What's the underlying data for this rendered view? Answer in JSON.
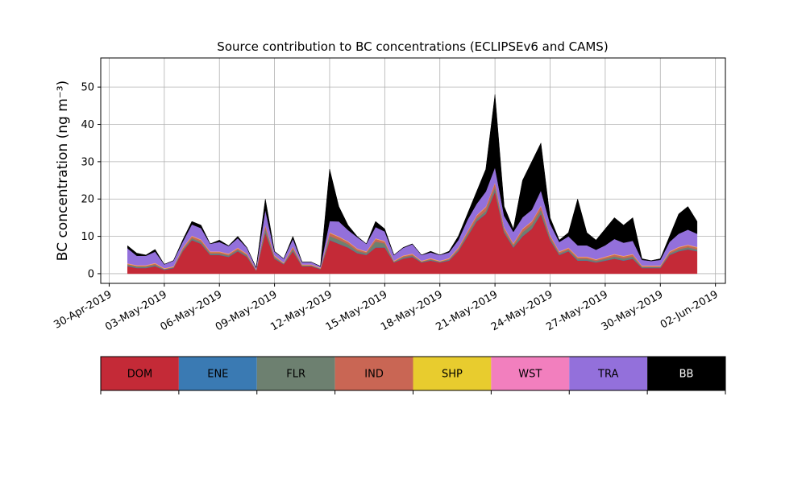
{
  "chart_data": {
    "type": "stacked_area",
    "title": "Source contribution to BC concentrations (ECLIPSEv6 and CAMS)",
    "y_label": "BC concentration (ng m⁻³)",
    "grid": true,
    "xlim": [
      "2019-04-29T13:00",
      "2019-06-02T13:00"
    ],
    "ylim": [
      -2.6,
      57.8
    ],
    "yticks": [
      0,
      10,
      20,
      30,
      40,
      50
    ],
    "xticks": [
      {
        "value": "2019-04-30T00:00",
        "label": "30-Apr-2019"
      },
      {
        "value": "2019-05-03T00:00",
        "label": "03-May-2019"
      },
      {
        "value": "2019-05-06T00:00",
        "label": "06-May-2019"
      },
      {
        "value": "2019-05-09T00:00",
        "label": "09-May-2019"
      },
      {
        "value": "2019-05-12T00:00",
        "label": "12-May-2019"
      },
      {
        "value": "2019-05-15T00:00",
        "label": "15-May-2019"
      },
      {
        "value": "2019-05-18T00:00",
        "label": "18-May-2019"
      },
      {
        "value": "2019-05-21T00:00",
        "label": "21-May-2019"
      },
      {
        "value": "2019-05-24T00:00",
        "label": "24-May-2019"
      },
      {
        "value": "2019-05-27T00:00",
        "label": "27-May-2019"
      },
      {
        "value": "2019-05-30T00:00",
        "label": "30-May-2019"
      },
      {
        "value": "2019-06-02T00:00",
        "label": "02-Jun-2019"
      }
    ],
    "x": [
      "2019-05-01T00:00",
      "2019-05-01T12:00",
      "2019-05-02T00:00",
      "2019-05-02T12:00",
      "2019-05-03T00:00",
      "2019-05-03T12:00",
      "2019-05-04T00:00",
      "2019-05-04T12:00",
      "2019-05-05T00:00",
      "2019-05-05T12:00",
      "2019-05-06T00:00",
      "2019-05-06T12:00",
      "2019-05-07T00:00",
      "2019-05-07T12:00",
      "2019-05-08T00:00",
      "2019-05-08T12:00",
      "2019-05-09T00:00",
      "2019-05-09T12:00",
      "2019-05-10T00:00",
      "2019-05-10T12:00",
      "2019-05-11T00:00",
      "2019-05-11T12:00",
      "2019-05-12T00:00",
      "2019-05-12T12:00",
      "2019-05-13T00:00",
      "2019-05-13T12:00",
      "2019-05-14T00:00",
      "2019-05-14T12:00",
      "2019-05-15T00:00",
      "2019-05-15T12:00",
      "2019-05-16T00:00",
      "2019-05-16T12:00",
      "2019-05-17T00:00",
      "2019-05-17T12:00",
      "2019-05-18T00:00",
      "2019-05-18T12:00",
      "2019-05-19T00:00",
      "2019-05-19T12:00",
      "2019-05-20T00:00",
      "2019-05-20T12:00",
      "2019-05-21T00:00",
      "2019-05-21T12:00",
      "2019-05-22T00:00",
      "2019-05-22T12:00",
      "2019-05-23T00:00",
      "2019-05-23T12:00",
      "2019-05-24T00:00",
      "2019-05-24T12:00",
      "2019-05-25T00:00",
      "2019-05-25T12:00",
      "2019-05-26T00:00",
      "2019-05-26T12:00",
      "2019-05-27T00:00",
      "2019-05-27T12:00",
      "2019-05-28T00:00",
      "2019-05-28T12:00",
      "2019-05-29T00:00",
      "2019-05-29T12:00",
      "2019-05-30T00:00",
      "2019-05-30T12:00",
      "2019-05-31T00:00",
      "2019-05-31T12:00",
      "2019-06-01T00:00"
    ],
    "series": [
      {
        "name": "DOM",
        "color": "#c42a37",
        "values": [
          2,
          1.5,
          1.5,
          2,
          1,
          1.5,
          6,
          9,
          8,
          5,
          5,
          4.5,
          6,
          4.5,
          0.8,
          11,
          4,
          2.5,
          6,
          2,
          2,
          1.2,
          9,
          8,
          7,
          5.5,
          5,
          7,
          7,
          3,
          4,
          4.5,
          3,
          3.5,
          3,
          3.5,
          6,
          10,
          14,
          16,
          22,
          11,
          7,
          10,
          12,
          16,
          9,
          5,
          6,
          3.5,
          3.5,
          3,
          3.5,
          4,
          3.5,
          4,
          1.5,
          1.5,
          1.5,
          5,
          6,
          6.5,
          6
        ]
      },
      {
        "name": "ENE",
        "color": "#3a7ab3",
        "values": [
          0.1,
          0.1,
          0.1,
          0.1,
          0.1,
          0.1,
          0.1,
          0.1,
          0.1,
          0.1,
          0.1,
          0.1,
          0.1,
          0.1,
          0.1,
          0.1,
          0.1,
          0.1,
          0.1,
          0.1,
          0.1,
          0.1,
          0.1,
          0.1,
          0.1,
          0.1,
          0.1,
          0.1,
          0.1,
          0.1,
          0.1,
          0.1,
          0.1,
          0.1,
          0.1,
          0.1,
          0.1,
          0.1,
          0.1,
          0.1,
          0.1,
          0.1,
          0.1,
          0.1,
          0.1,
          0.1,
          0.1,
          0.1,
          0.1,
          0.1,
          0.1,
          0.1,
          0.1,
          0.1,
          0.1,
          0.1,
          0.1,
          0.1,
          0.1,
          0.1,
          0.1,
          0.1,
          0.1
        ]
      },
      {
        "name": "FLR",
        "color": "#6d8070",
        "values": [
          0.3,
          0.3,
          0.3,
          0.3,
          0.1,
          0.1,
          0.3,
          0.4,
          0.4,
          0.3,
          0.3,
          0.3,
          0.3,
          0.3,
          0.05,
          1,
          0.3,
          0.1,
          0.5,
          0.1,
          0.1,
          0.05,
          1,
          1,
          0.8,
          0.5,
          0.4,
          1.5,
          1,
          0.1,
          0.3,
          0.3,
          0.1,
          0.2,
          0.1,
          0.2,
          0.3,
          0.5,
          0.6,
          0.7,
          1,
          0.5,
          0.4,
          1,
          1,
          1,
          0.5,
          0.3,
          0.3,
          0.4,
          0.4,
          0.3,
          0.4,
          0.5,
          0.5,
          0.5,
          0.2,
          0.2,
          0.2,
          0.3,
          0.4,
          0.5,
          0.4
        ]
      },
      {
        "name": "IND",
        "color": "#c96654",
        "values": [
          0.2,
          0.2,
          0.2,
          0.3,
          0.1,
          0.1,
          0.4,
          0.5,
          0.5,
          0.4,
          0.4,
          0.3,
          0.4,
          0.3,
          0.05,
          0.8,
          0.3,
          0.1,
          0.5,
          0.1,
          0.1,
          0.05,
          0.8,
          0.7,
          0.6,
          0.5,
          0.3,
          0.7,
          0.5,
          0.1,
          0.3,
          0.3,
          0.1,
          0.2,
          0.1,
          0.2,
          0.4,
          0.6,
          0.8,
          1,
          1.2,
          0.7,
          0.5,
          0.8,
          0.8,
          1,
          0.6,
          0.4,
          0.4,
          0.4,
          0.4,
          0.3,
          0.4,
          0.5,
          0.5,
          0.5,
          0.2,
          0.2,
          0.2,
          0.4,
          0.5,
          0.5,
          0.5
        ]
      },
      {
        "name": "SHP",
        "color": "#e8cc2e",
        "values": [
          0.1,
          0.1,
          0.1,
          0.1,
          0.1,
          0.1,
          0.1,
          0.1,
          0.1,
          0.1,
          0.1,
          0.1,
          0.1,
          0.1,
          0.1,
          0.1,
          0.1,
          0.1,
          0.1,
          0.1,
          0.1,
          0.1,
          0.1,
          0.1,
          0.1,
          0.1,
          0.1,
          0.1,
          0.1,
          0.1,
          0.1,
          0.1,
          0.1,
          0.1,
          0.1,
          0.1,
          0.1,
          0.1,
          0.1,
          0.1,
          0.1,
          0.1,
          0.1,
          0.1,
          0.1,
          0.1,
          0.1,
          0.1,
          0.1,
          0.1,
          0.1,
          0.1,
          0.1,
          0.1,
          0.1,
          0.1,
          0.1,
          0.1,
          0.1,
          0.1,
          0.1,
          0.1,
          0.1
        ]
      },
      {
        "name": "WST",
        "color": "#f27fbe",
        "values": [
          0.1,
          0.1,
          0.1,
          0.1,
          0.1,
          0.1,
          0.1,
          0.1,
          0.1,
          0.1,
          0.1,
          0.1,
          0.1,
          0.1,
          0.1,
          0.1,
          0.1,
          0.1,
          0.1,
          0.1,
          0.1,
          0.1,
          0.1,
          0.1,
          0.1,
          0.1,
          0.1,
          0.1,
          0.1,
          0.1,
          0.1,
          0.1,
          0.1,
          0.1,
          0.1,
          0.1,
          0.1,
          0.1,
          0.1,
          0.1,
          0.1,
          0.1,
          0.1,
          0.1,
          0.1,
          0.1,
          0.1,
          0.1,
          0.1,
          0.1,
          0.1,
          0.1,
          0.1,
          0.1,
          0.1,
          0.1,
          0.1,
          0.1,
          0.1,
          0.1,
          0.1,
          0.1,
          0.1
        ]
      },
      {
        "name": "TRA",
        "color": "#9370db",
        "values": [
          4,
          2.5,
          2.5,
          3,
          1,
          1.5,
          1.5,
          3,
          3,
          2,
          2.5,
          2,
          2.5,
          1.5,
          0.4,
          4,
          1,
          1,
          2,
          0.6,
          0.6,
          0.4,
          3,
          4,
          3,
          3,
          2,
          3,
          2.5,
          1.5,
          2,
          2.5,
          1.5,
          1.5,
          1.5,
          1.5,
          2,
          3,
          3,
          4,
          4,
          3,
          3,
          3,
          3,
          4,
          3,
          2.5,
          3,
          3,
          3,
          2.5,
          3,
          4,
          3.5,
          3.5,
          1.5,
          1.2,
          1.5,
          2.5,
          3.5,
          4,
          3.5
        ]
      },
      {
        "name": "BB",
        "color": "#000000",
        "values": [
          0.7,
          0.7,
          0.2,
          0.6,
          0,
          0,
          0.5,
          0.8,
          0.8,
          0,
          0.5,
          0.1,
          0.5,
          0.1,
          0,
          2.9,
          0.1,
          0,
          0.7,
          0,
          0,
          0,
          13.9,
          4,
          1.3,
          0.2,
          0,
          1.5,
          0.7,
          0,
          0.1,
          0.1,
          0,
          0.3,
          0,
          0.3,
          1,
          1.6,
          3.3,
          6,
          19.5,
          2.5,
          0.8,
          9.9,
          12.9,
          12.7,
          1.6,
          0.5,
          1,
          12.4,
          3.4,
          2.6,
          4.4,
          5.7,
          4.7,
          6.2,
          0.3,
          0.1,
          0.3,
          1.5,
          5.3,
          6.2,
          3.3
        ]
      }
    ]
  }
}
